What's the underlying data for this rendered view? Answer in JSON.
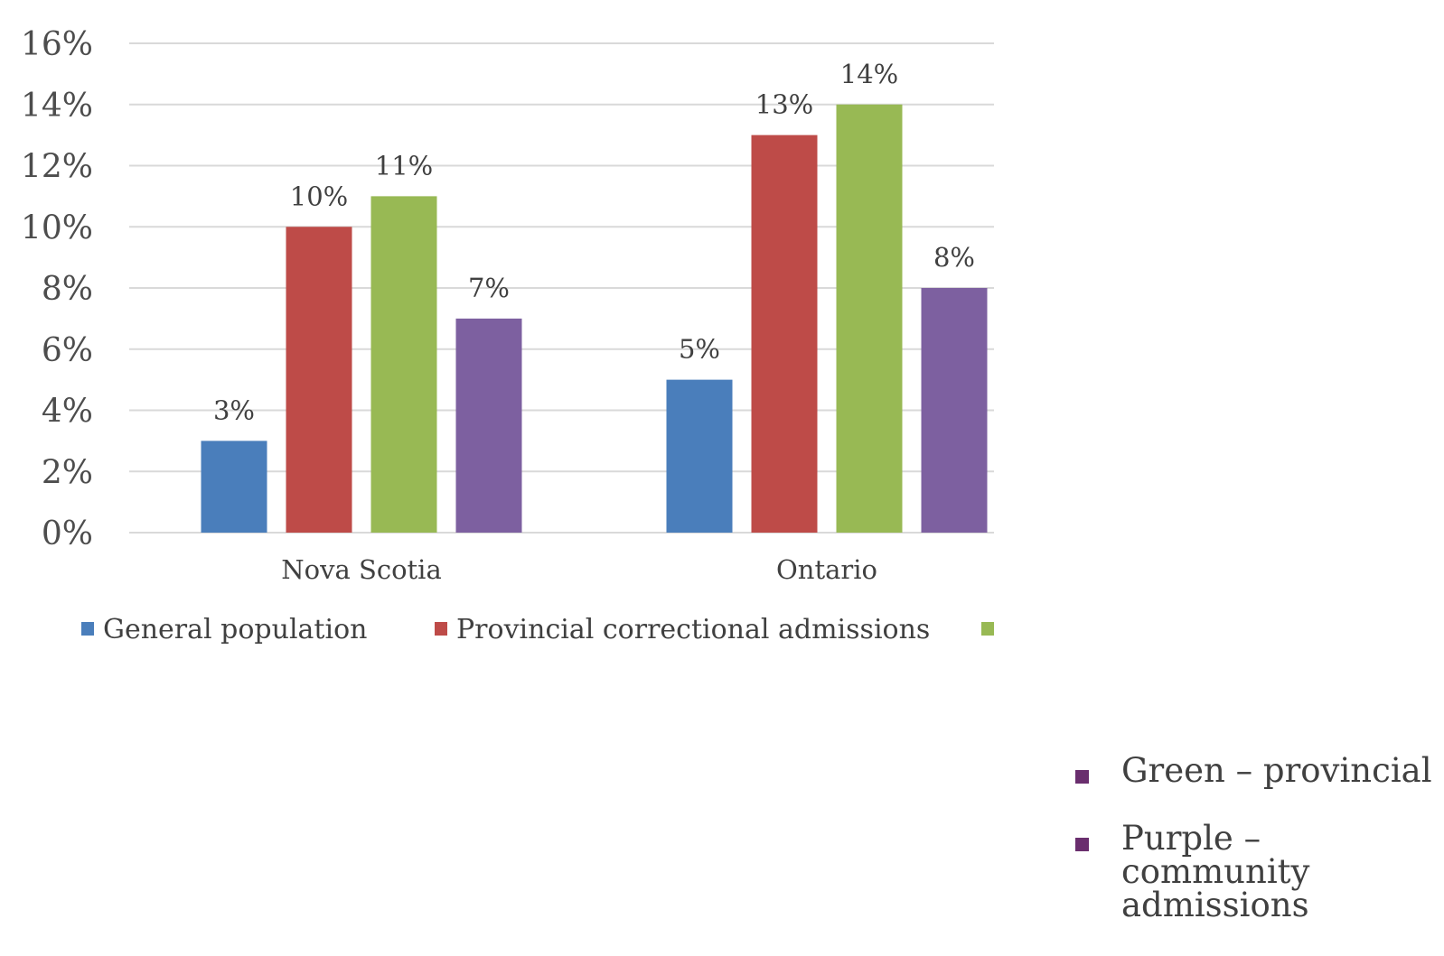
{
  "colors": {
    "general": "#4a7ebb",
    "provincial_corr": "#be4b48",
    "provincial_green": "#98b954",
    "community": "#7d60a0",
    "grid": "#d9d9d9",
    "bullet": "#6a2e6e"
  },
  "chart_data": {
    "type": "bar",
    "categories": [
      "Nova Scotia",
      "Ontario"
    ],
    "series": [
      {
        "name": "General population",
        "values": [
          3,
          5
        ],
        "labels": [
          "3%",
          "5%"
        ]
      },
      {
        "values": [
          10,
          13
        ],
        "labels": [
          "10%",
          "13%"
        ]
      },
      {
        "values": [
          11,
          14
        ],
        "labels": [
          "11%",
          "14%"
        ]
      },
      {
        "values": [
          7,
          8
        ],
        "labels": [
          "7%",
          "8%"
        ]
      }
    ],
    "yticks": [
      "0%",
      "2%",
      "4%",
      "6%",
      "8%",
      "10%",
      "12%",
      "14%",
      "16%"
    ],
    "ylim": [
      0,
      16
    ],
    "grid": true,
    "legend": [
      "General population",
      "Provincial correctional admissions",
      ""
    ],
    "legend_position": "bottom"
  },
  "bullets": [
    {
      "lines": [
        "Green – provincial"
      ]
    },
    {
      "lines": [
        "Purple –",
        "community",
        "admissions"
      ]
    }
  ]
}
